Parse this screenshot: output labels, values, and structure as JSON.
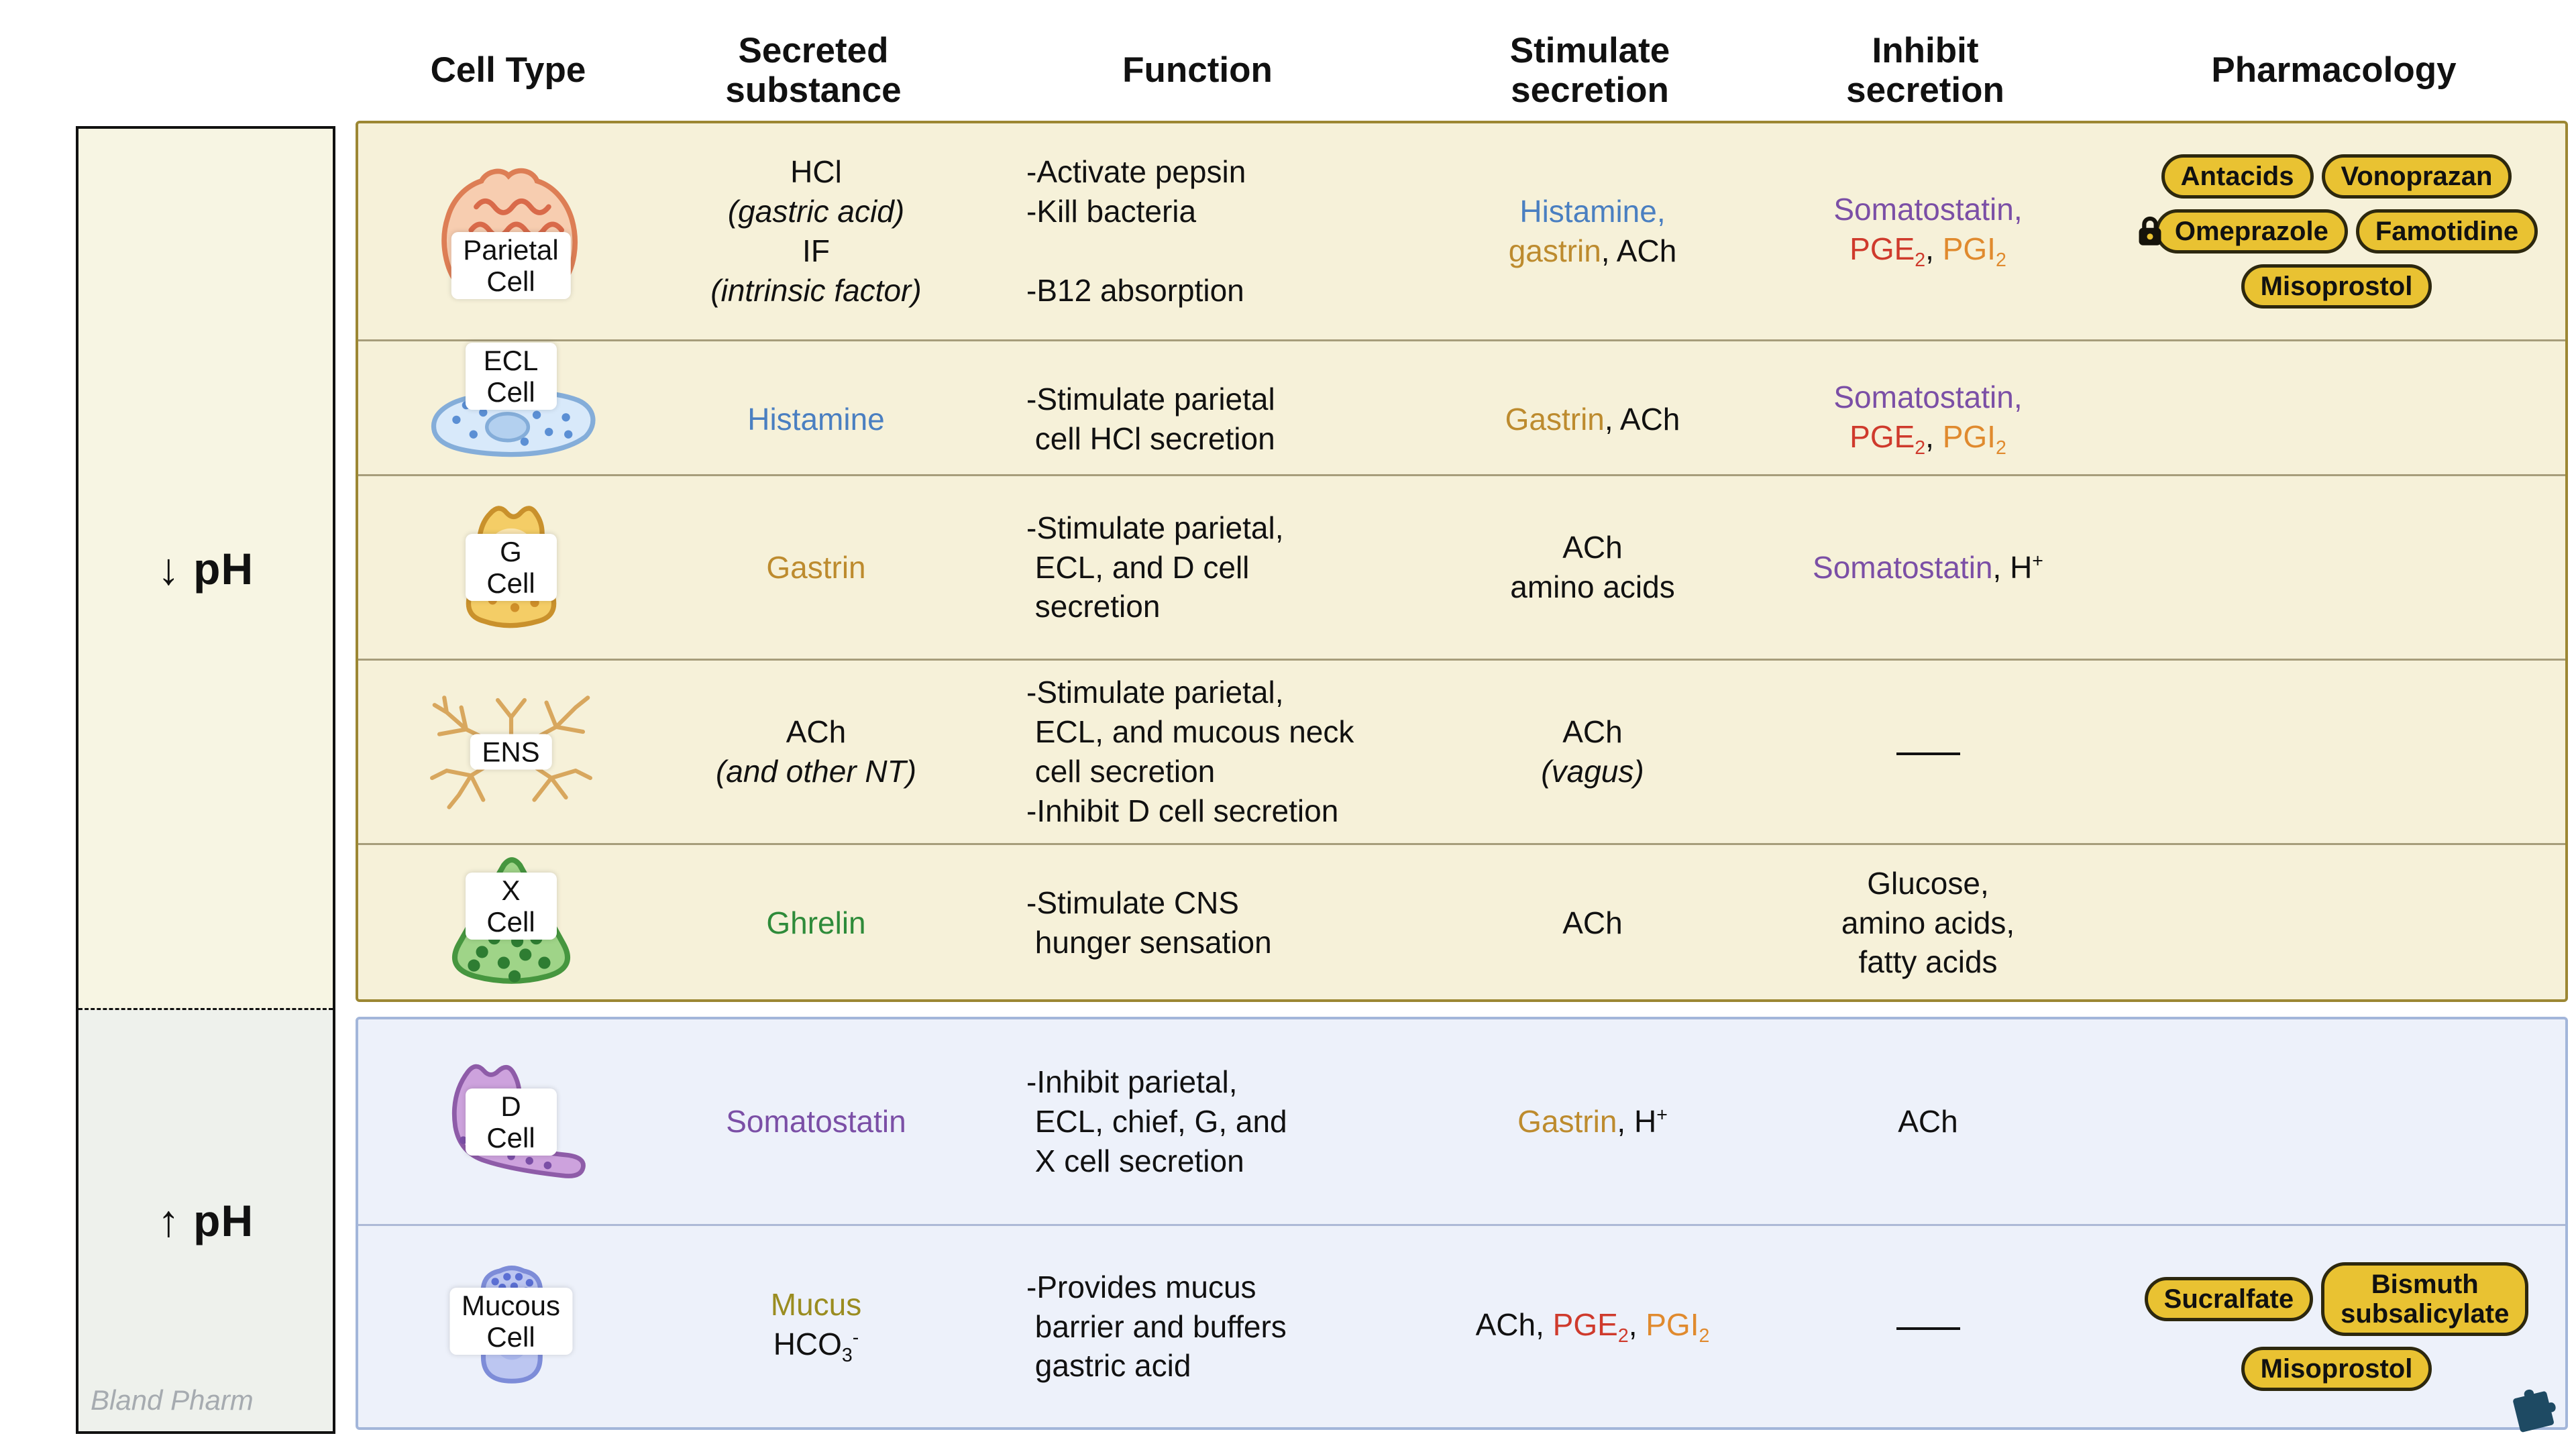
{
  "title": "Gastric secretion cells table",
  "header": {
    "columns": [
      "Cell Type",
      "Secreted\nsubstance",
      "Function",
      "Stimulate\nsecretion",
      "Inhibit\nsecretion",
      "Pharmacology"
    ]
  },
  "ph_panel": {
    "low_label": "↓ pH",
    "high_label": "↑ pH",
    "watermark": "Bland Pharm"
  },
  "colors": {
    "histamine": "#4a7fc1",
    "gastrin": "#bd8b2e",
    "somatostatin": "#7b4fa6",
    "pge2": "#cf3a2c",
    "pgi2": "#e08a2e",
    "ghrelin": "#2e8b3a",
    "mucus": "#9a8c20",
    "pill_bg": "#e9c232",
    "acid_bg": "#f6f1d9",
    "acid_border": "#9c8733",
    "base_bg": "#edf1fa",
    "base_border": "#a3b6da"
  },
  "groups": {
    "acid": {
      "rows": [
        {
          "cell": {
            "label": "Parietal Cell",
            "icon": "parietal-cell"
          },
          "secreted": [
            {
              "t": "HCl"
            },
            {
              "br": true
            },
            {
              "t": "(gastric acid)",
              "i": true
            },
            {
              "br": true
            },
            {
              "t": "IF"
            },
            {
              "br": true
            },
            {
              "t": "(intrinsic factor)",
              "i": true
            }
          ],
          "function": [
            {
              "t": "-Activate pepsin"
            },
            {
              "br": true
            },
            {
              "t": "-Kill bacteria"
            },
            {
              "br": true
            },
            {
              "br": true
            },
            {
              "t": "-B12 absorption"
            }
          ],
          "stimulate": [
            {
              "t": "Histamine,",
              "c": "histamine"
            },
            {
              "br": true
            },
            {
              "t": "gastrin",
              "c": "gastrin"
            },
            {
              "t": ", ACh"
            }
          ],
          "inhibit": [
            {
              "t": "Somatostatin,",
              "c": "somatostatin"
            },
            {
              "br": true
            },
            {
              "t": "PGE",
              "c": "pge2"
            },
            {
              "t": "2",
              "sub": true,
              "c": "pge2"
            },
            {
              "t": ", "
            },
            {
              "t": "PGI",
              "c": "pgi2"
            },
            {
              "t": "2",
              "sub": true,
              "c": "pgi2"
            }
          ],
          "pharm": [
            {
              "label": "Antacids"
            },
            {
              "label": "Vonoprazan"
            },
            {
              "label": "Omeprazole",
              "lock": true
            },
            {
              "label": "Famotidine"
            },
            {
              "label": "Misoprostol"
            }
          ]
        },
        {
          "cell": {
            "label": "ECL Cell",
            "icon": "ecl-cell"
          },
          "secreted": [
            {
              "t": "Histamine",
              "c": "histamine"
            }
          ],
          "function": [
            {
              "t": "-Stimulate parietal"
            },
            {
              "br": true
            },
            {
              "t": " cell HCl secretion"
            }
          ],
          "stimulate": [
            {
              "t": "Gastrin",
              "c": "gastrin"
            },
            {
              "t": ", ACh"
            }
          ],
          "inhibit": [
            {
              "t": "Somatostatin,",
              "c": "somatostatin"
            },
            {
              "br": true
            },
            {
              "t": "PGE",
              "c": "pge2"
            },
            {
              "t": "2",
              "sub": true,
              "c": "pge2"
            },
            {
              "t": ", "
            },
            {
              "t": "PGI",
              "c": "pgi2"
            },
            {
              "t": "2",
              "sub": true,
              "c": "pgi2"
            }
          ],
          "pharm": []
        },
        {
          "cell": {
            "label": "G Cell",
            "icon": "g-cell"
          },
          "secreted": [
            {
              "t": "Gastrin",
              "c": "gastrin"
            }
          ],
          "function": [
            {
              "t": "-Stimulate parietal,"
            },
            {
              "br": true
            },
            {
              "t": " ECL, and D cell"
            },
            {
              "br": true
            },
            {
              "t": " secretion"
            }
          ],
          "stimulate": [
            {
              "t": "ACh"
            },
            {
              "br": true
            },
            {
              "t": "amino acids"
            }
          ],
          "inhibit": [
            {
              "t": "Somatostatin",
              "c": "somatostatin"
            },
            {
              "t": ", H"
            },
            {
              "t": "+",
              "sup": true
            }
          ],
          "pharm": []
        },
        {
          "cell": {
            "label": "ENS",
            "icon": "ens"
          },
          "secreted": [
            {
              "t": "ACh"
            },
            {
              "br": true
            },
            {
              "t": "(and other NT)",
              "i": true
            }
          ],
          "function": [
            {
              "t": "-Stimulate parietal,"
            },
            {
              "br": true
            },
            {
              "t": " ECL, and mucous neck"
            },
            {
              "br": true
            },
            {
              "t": " cell secretion"
            },
            {
              "br": true
            },
            {
              "t": "-Inhibit D cell secretion"
            }
          ],
          "stimulate": [
            {
              "t": "ACh"
            },
            {
              "br": true
            },
            {
              "t": "(vagus)",
              "i": true
            }
          ],
          "inhibit": [
            {
              "dash": true
            }
          ],
          "pharm": []
        },
        {
          "cell": {
            "label": "X Cell",
            "icon": "x-cell"
          },
          "secreted": [
            {
              "t": "Ghrelin",
              "c": "ghrelin"
            }
          ],
          "function": [
            {
              "t": "-Stimulate CNS"
            },
            {
              "br": true
            },
            {
              "t": " hunger sensation"
            }
          ],
          "stimulate": [
            {
              "t": "ACh"
            }
          ],
          "inhibit": [
            {
              "t": "Glucose,"
            },
            {
              "br": true
            },
            {
              "t": "amino acids,"
            },
            {
              "br": true
            },
            {
              "t": "fatty acids"
            }
          ],
          "pharm": []
        }
      ]
    },
    "base": {
      "rows": [
        {
          "cell": {
            "label": "D Cell",
            "icon": "d-cell"
          },
          "secreted": [
            {
              "t": "Somatostatin",
              "c": "somatostatin"
            }
          ],
          "function": [
            {
              "t": "-Inhibit parietal,"
            },
            {
              "br": true
            },
            {
              "t": " ECL, chief, G, and"
            },
            {
              "br": true
            },
            {
              "t": " X cell secretion"
            }
          ],
          "stimulate": [
            {
              "t": "Gastrin",
              "c": "gastrin"
            },
            {
              "t": ", H"
            },
            {
              "t": "+",
              "sup": true
            }
          ],
          "inhibit": [
            {
              "t": "ACh"
            }
          ],
          "pharm": []
        },
        {
          "cell": {
            "label": "Mucous\nCell",
            "icon": "mucous-cell"
          },
          "secreted": [
            {
              "t": "Mucus",
              "c": "mucus"
            },
            {
              "br": true
            },
            {
              "t": "HCO"
            },
            {
              "t": "3",
              "sub": true
            },
            {
              "t": "-",
              "sup": true
            }
          ],
          "function": [
            {
              "t": "-Provides mucus"
            },
            {
              "br": true
            },
            {
              "t": " barrier and buffers"
            },
            {
              "br": true
            },
            {
              "t": " gastric acid"
            }
          ],
          "stimulate": [
            {
              "t": "ACh, "
            },
            {
              "t": "PGE",
              "c": "pge2"
            },
            {
              "t": "2",
              "sub": true,
              "c": "pge2"
            },
            {
              "t": ", "
            },
            {
              "t": "PGI",
              "c": "pgi2"
            },
            {
              "t": "2",
              "sub": true,
              "c": "pgi2"
            }
          ],
          "inhibit": [
            {
              "dash": true
            }
          ],
          "pharm": [
            {
              "label": "Sucralfate"
            },
            {
              "label": "Bismuth\nsubsalicylate"
            },
            {
              "label": "Misoprostol"
            }
          ]
        }
      ]
    }
  }
}
